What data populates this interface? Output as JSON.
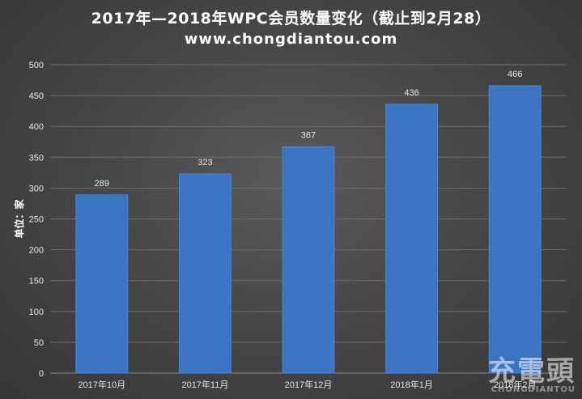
{
  "chart_data": {
    "type": "bar",
    "title": "2017年—2018年WPC会员数量变化（截止到2月28）",
    "subtitle": "www.chongdiantou.com",
    "ylabel": "单位：家",
    "categories": [
      "2017年10月",
      "2017年11月",
      "2017年12月",
      "2018年1月",
      "2018年2月"
    ],
    "values": [
      289,
      323,
      367,
      436,
      466
    ],
    "ylim": [
      0,
      500
    ],
    "yticks": [
      0,
      50,
      100,
      150,
      200,
      250,
      300,
      350,
      400,
      450,
      500
    ],
    "grid": true,
    "legend": "none",
    "colors": {
      "bar": "#3a75c4",
      "bar_edge": "#4c86d6",
      "grid": "#6e6e6e",
      "text": "#e6e6e6"
    }
  },
  "watermark": {
    "top": "充電頭",
    "bottom": "CHONGDIANTOU"
  }
}
